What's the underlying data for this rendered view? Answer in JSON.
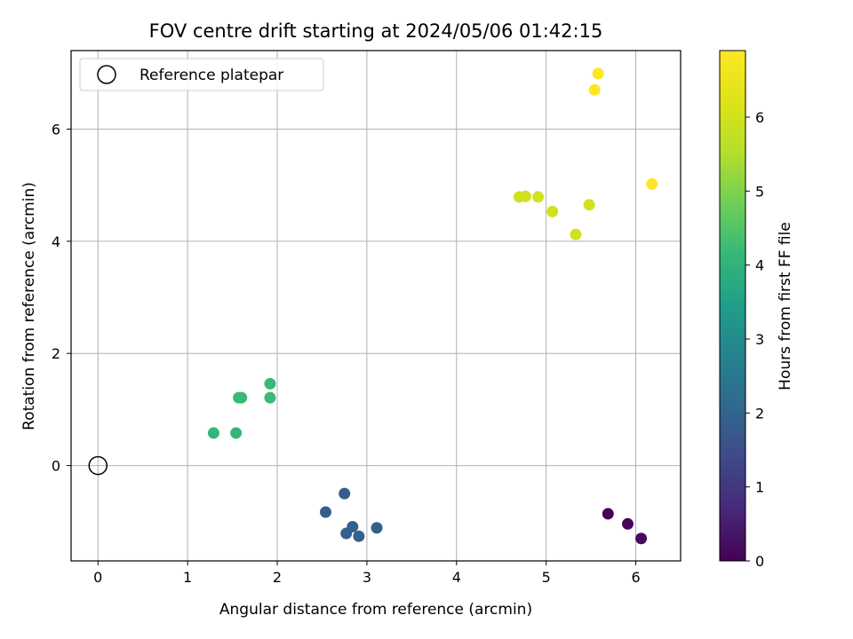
{
  "chart_data": {
    "type": "scatter",
    "title": "FOV centre drift starting at 2024/05/06 01:42:15",
    "xlabel": "Angular distance from reference (arcmin)",
    "ylabel": "Rotation from reference (arcmin)",
    "xlim": [
      -0.3,
      6.5
    ],
    "ylim": [
      -1.7,
      7.4
    ],
    "xticks": [
      0,
      1,
      2,
      3,
      4,
      5,
      6
    ],
    "yticks": [
      0,
      2,
      4,
      6
    ],
    "grid": true,
    "legend": {
      "placement": "top-left",
      "entries": [
        "Reference platepar"
      ]
    },
    "reference_point": {
      "name": "Reference platepar",
      "x": 0,
      "y": 0,
      "marker": "open-circle"
    },
    "colorbar": {
      "label": "Hours from first FF file",
      "colormap": "viridis",
      "range": [
        0,
        6.9
      ],
      "ticks": [
        0,
        1,
        2,
        3,
        4,
        5,
        6
      ]
    },
    "points": [
      {
        "x": 5.69,
        "y": -0.86,
        "hours": 0.0
      },
      {
        "x": 5.91,
        "y": -1.04,
        "hours": 0.1
      },
      {
        "x": 6.06,
        "y": -1.3,
        "hours": 0.2
      },
      {
        "x": 2.75,
        "y": -0.5,
        "hours": 1.8
      },
      {
        "x": 2.54,
        "y": -0.83,
        "hours": 1.8
      },
      {
        "x": 2.84,
        "y": -1.09,
        "hours": 1.9
      },
      {
        "x": 2.77,
        "y": -1.21,
        "hours": 1.9
      },
      {
        "x": 2.91,
        "y": -1.26,
        "hours": 1.9
      },
      {
        "x": 3.11,
        "y": -1.11,
        "hours": 1.9
      },
      {
        "x": 1.29,
        "y": 0.58,
        "hours": 4.1
      },
      {
        "x": 1.54,
        "y": 0.58,
        "hours": 4.1
      },
      {
        "x": 1.57,
        "y": 1.21,
        "hours": 4.2
      },
      {
        "x": 1.6,
        "y": 1.21,
        "hours": 4.2
      },
      {
        "x": 1.92,
        "y": 1.21,
        "hours": 4.2
      },
      {
        "x": 1.92,
        "y": 1.46,
        "hours": 4.2
      },
      {
        "x": 4.7,
        "y": 4.79,
        "hours": 6.0
      },
      {
        "x": 4.77,
        "y": 4.8,
        "hours": 6.0
      },
      {
        "x": 4.91,
        "y": 4.79,
        "hours": 6.0
      },
      {
        "x": 5.07,
        "y": 4.53,
        "hours": 6.0
      },
      {
        "x": 5.33,
        "y": 4.12,
        "hours": 6.0
      },
      {
        "x": 5.48,
        "y": 4.65,
        "hours": 6.0
      },
      {
        "x": 5.54,
        "y": 6.7,
        "hours": 6.9
      },
      {
        "x": 5.58,
        "y": 6.99,
        "hours": 6.9
      },
      {
        "x": 6.18,
        "y": 5.02,
        "hours": 6.9
      }
    ]
  }
}
